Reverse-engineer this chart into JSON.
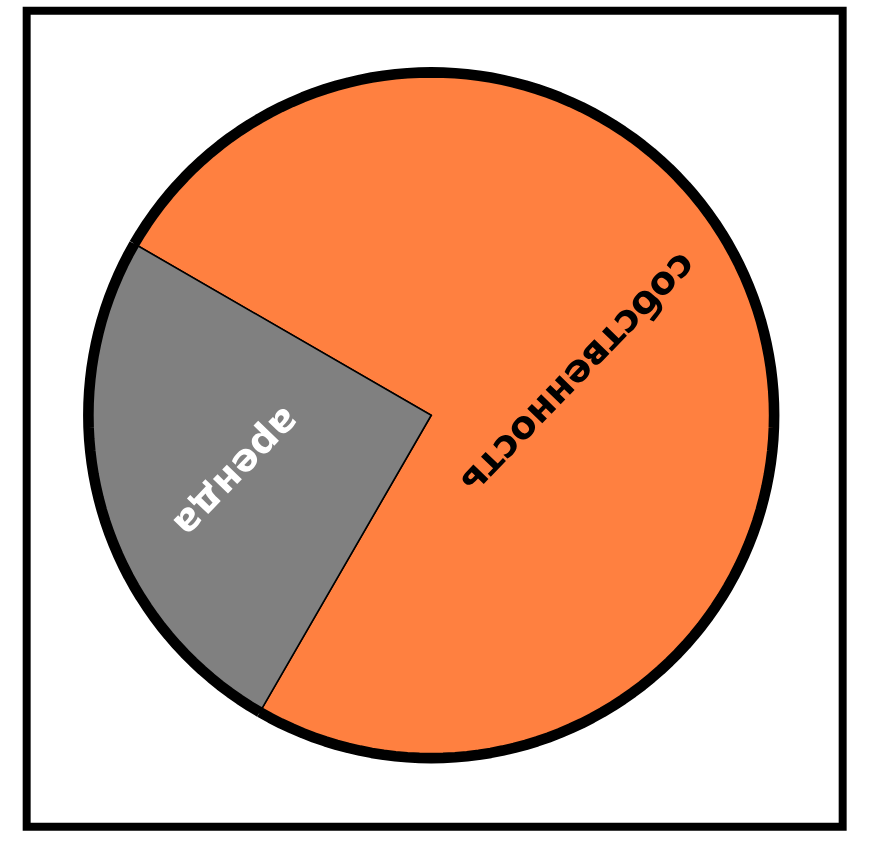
{
  "chart_data": {
    "type": "pie",
    "categories": [
      "собственность",
      "аренда"
    ],
    "values": [
      75,
      25
    ],
    "colors": [
      "#ff8040",
      "#808080"
    ]
  }
}
